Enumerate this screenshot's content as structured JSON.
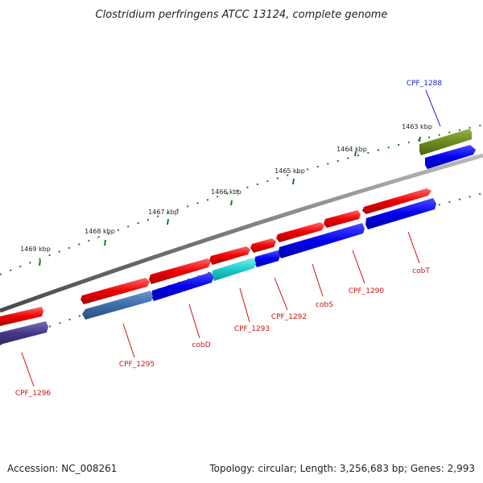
{
  "title": "Clostridium perfringens ATCC 13124, complete genome",
  "footer": {
    "accession": "Accession: NC_008261",
    "stats": "Topology: circular; Length: 3,256,683 bp; Genes: 2,993"
  },
  "ticks": [
    "1463 kbp",
    "1464 kbp",
    "1465 kbp",
    "1466 kbp",
    "1467 kbp",
    "1468 kbp",
    "1469 kbp"
  ],
  "genes": [
    {
      "label": "CPF_1288",
      "color": "#1b1bd0"
    },
    {
      "label": "cobT",
      "color": "#cc1111"
    },
    {
      "label": "CPF_1290",
      "color": "#cc1111"
    },
    {
      "label": "cobS",
      "color": "#cc1111"
    },
    {
      "label": "CPF_1292",
      "color": "#cc1111"
    },
    {
      "label": "CPF_1293",
      "color": "#cc1111"
    },
    {
      "label": "cobD",
      "color": "#cc1111"
    },
    {
      "label": "CPF_1295",
      "color": "#cc1111"
    },
    {
      "label": "CPF_1296",
      "color": "#cc1111"
    }
  ]
}
